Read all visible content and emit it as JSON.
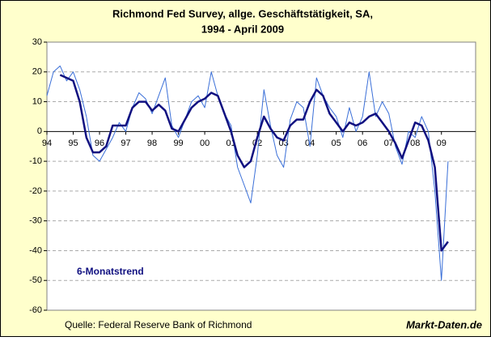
{
  "chart_data": {
    "type": "line",
    "title": "Richmond Fed Survey, allge. Geschäftstätigkeit, SA,",
    "subtitle": "1994 - April 2009",
    "source": "Quelle: Federal Reserve Bank of Richmond",
    "credit": "Markt-Daten.de",
    "x": [
      1994,
      1994.25,
      1994.5,
      1994.75,
      1995,
      1995.25,
      1995.5,
      1995.75,
      1996,
      1996.25,
      1996.5,
      1996.75,
      1997,
      1997.25,
      1997.5,
      1997.75,
      1998,
      1998.25,
      1998.5,
      1998.75,
      1999,
      1999.25,
      1999.5,
      1999.75,
      2000,
      2000.25,
      2000.5,
      2000.75,
      2001,
      2001.25,
      2001.5,
      2001.75,
      2002,
      2002.25,
      2002.5,
      2002.75,
      2003,
      2003.25,
      2003.5,
      2003.75,
      2004,
      2004.25,
      2004.5,
      2004.75,
      2005,
      2005.25,
      2005.5,
      2005.75,
      2006,
      2006.25,
      2006.5,
      2006.75,
      2007,
      2007.25,
      2007.5,
      2007.75,
      2008,
      2008.25,
      2008.5,
      2008.75,
      2009,
      2009.25
    ],
    "series": [
      {
        "color": "#3a6fd8",
        "width": 1,
        "values": [
          12,
          20,
          22,
          17,
          20,
          14,
          5,
          -8,
          -10,
          -6,
          -2,
          3,
          0,
          8,
          13,
          11,
          6,
          12,
          18,
          2,
          -2,
          4,
          10,
          12,
          8,
          20,
          12,
          6,
          2,
          -12,
          -18,
          -24,
          -8,
          14,
          2,
          -8,
          -12,
          4,
          10,
          8,
          -5,
          18,
          12,
          8,
          5,
          -2,
          8,
          0,
          5,
          20,
          5,
          10,
          6,
          -5,
          -11,
          0,
          -2,
          5,
          0,
          -20,
          -50,
          -10
        ]
      },
      {
        "name": "6-Monatstrend",
        "color": "#101080",
        "width": 2.5,
        "values": [
          null,
          null,
          19,
          18,
          17,
          10,
          -2,
          -7,
          -7,
          -5,
          2,
          2,
          2,
          8,
          10,
          10,
          7,
          9,
          7,
          1,
          0,
          4,
          8,
          10,
          11,
          13,
          12,
          6,
          0,
          -8,
          -12,
          -10,
          -2,
          5,
          1,
          -2,
          -3,
          2,
          4,
          4,
          10,
          14,
          12,
          6,
          3,
          0,
          3,
          2,
          3,
          5,
          6,
          3,
          0,
          -4,
          -9,
          -3,
          3,
          2,
          -3,
          -12,
          -40,
          -37
        ]
      }
    ],
    "xlim": [
      1994,
      2010.3
    ],
    "xticks": [
      {
        "value": 1994,
        "label": "94"
      },
      {
        "value": 1995,
        "label": "95"
      },
      {
        "value": 1996,
        "label": "96"
      },
      {
        "value": 1997,
        "label": "97"
      },
      {
        "value": 1998,
        "label": "98"
      },
      {
        "value": 1999,
        "label": "99"
      },
      {
        "value": 2000,
        "label": "00"
      },
      {
        "value": 2001,
        "label": "01"
      },
      {
        "value": 2002,
        "label": "02"
      },
      {
        "value": 2003,
        "label": "03"
      },
      {
        "value": 2004,
        "label": "04"
      },
      {
        "value": 2005,
        "label": "05"
      },
      {
        "value": 2006,
        "label": "06"
      },
      {
        "value": 2007,
        "label": "07"
      },
      {
        "value": 2008,
        "label": "08"
      },
      {
        "value": 2009,
        "label": "09"
      }
    ],
    "ylim": [
      -60,
      30
    ],
    "yticks": [
      30,
      20,
      10,
      0,
      -10,
      -20,
      -30,
      -40,
      -50,
      -60
    ],
    "grid": true
  }
}
